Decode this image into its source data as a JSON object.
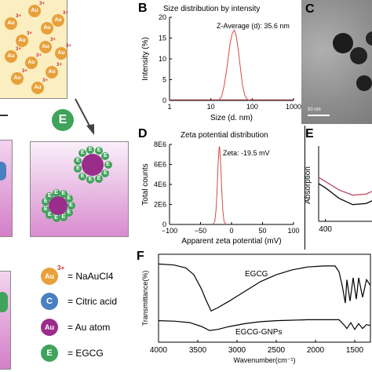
{
  "panels": {
    "B": {
      "letter": "B",
      "title": "Size distribution by intensity"
    },
    "C": {
      "letter": "C"
    },
    "D": {
      "letter": "D",
      "title": "Zeta potential distribution"
    },
    "E": {
      "letter": "E"
    },
    "F": {
      "letter": "F"
    }
  },
  "schematic": {
    "step_badge": "E",
    "ion_label": "Au",
    "ion_charge": "3+",
    "legend": [
      {
        "symbol": "Au",
        "sup": "3+",
        "label": "= NaAuCl4",
        "color": "#e8a03a"
      },
      {
        "symbol": "C",
        "sup": "",
        "label": "= Citric acid",
        "color": "#4a7fc1"
      },
      {
        "symbol": "Au",
        "sup": "",
        "label": "= Au atom",
        "color": "#9b2d8a"
      },
      {
        "symbol": "E",
        "sup": "",
        "label": "= EGCG",
        "color": "#3fa35b"
      }
    ]
  },
  "tem": {
    "scale_bar_text": "50 nm"
  },
  "chart_data": [
    {
      "panel": "B",
      "type": "line",
      "title": "Size distribution by intensity",
      "annotation": "Z-Average (d): 35.6 nm",
      "xlabel": "Size (d. nm)",
      "ylabel": "Intensity (%)",
      "xscale": "log",
      "xlim": [
        1,
        1000
      ],
      "ylim": [
        0,
        20
      ],
      "xticks": [
        "1",
        "10",
        "100",
        "1000"
      ],
      "yticks": [
        "0",
        "5",
        "10",
        "15",
        "20"
      ],
      "series": [
        {
          "color": "#d94b4b",
          "x": [
            15,
            18,
            21,
            25,
            29,
            33,
            37,
            41,
            46,
            52,
            58,
            66,
            75,
            85
          ],
          "y": [
            0,
            0.8,
            3.5,
            8.5,
            13.5,
            16.2,
            16.9,
            15.6,
            12.2,
            7.6,
            3.8,
            1.3,
            0.3,
            0
          ]
        }
      ]
    },
    {
      "panel": "D",
      "type": "line",
      "title": "Zeta potential distribution",
      "annotation": "Zeta: -19.5 mV",
      "xlabel": "Apparent zeta potential (mV)",
      "ylabel": "Total counts",
      "xlim": [
        -100,
        100
      ],
      "ylim": [
        0,
        8000000
      ],
      "xticks": [
        "−100",
        "−50",
        "0",
        "50",
        "100"
      ],
      "yticks": [
        "0",
        "2E6",
        "4E6",
        "6E6",
        "8E6"
      ],
      "series": [
        {
          "color": "#d94b4b",
          "x": [
            -30,
            -27,
            -25,
            -23,
            -21.5,
            -20,
            -19.5,
            -19,
            -17.5,
            -16,
            -14,
            -12,
            -9
          ],
          "y": [
            0,
            300000,
            1500000,
            3800000,
            6200000,
            7600000,
            7800000,
            7600000,
            6000000,
            3700000,
            1400000,
            300000,
            0
          ]
        }
      ]
    },
    {
      "panel": "E",
      "type": "line",
      "ylabel": "Absorption",
      "xticks": [
        "400"
      ],
      "series": [
        {
          "color": "#c0506a",
          "x": [
            390,
            400,
            420,
            440,
            460,
            480,
            500
          ],
          "y": [
            0.72,
            0.68,
            0.6,
            0.55,
            0.56,
            0.62,
            0.7
          ]
        },
        {
          "color": "#111111",
          "x": [
            390,
            400,
            420,
            440,
            460,
            480,
            500
          ],
          "y": [
            0.66,
            0.62,
            0.52,
            0.46,
            0.47,
            0.53,
            0.6
          ]
        }
      ]
    },
    {
      "panel": "F",
      "type": "line",
      "xlabel": "Wavenumber(cm⁻¹)",
      "ylabel": "Transmittance(%)",
      "xlim": [
        4000,
        1300
      ],
      "xticks": [
        "4000",
        "3500",
        "3000",
        "2500",
        "2000",
        "1500"
      ],
      "series": [
        {
          "name": "EGCG",
          "color": "#000000",
          "x": [
            4000,
            3800,
            3650,
            3550,
            3450,
            3400,
            3330,
            3250,
            3100,
            2900,
            2700,
            2500,
            2300,
            2100,
            1900,
            1750,
            1700,
            1660,
            1620,
            1600,
            1560,
            1520,
            1480,
            1450,
            1400,
            1350,
            1300
          ],
          "y": [
            80,
            79,
            76,
            69,
            54,
            44,
            32,
            35,
            42,
            52,
            62,
            69,
            74,
            77,
            78,
            78,
            72,
            58,
            40,
            64,
            42,
            66,
            44,
            66,
            46,
            64,
            58
          ]
        },
        {
          "name": "EGCG-GNPs",
          "color": "#000000",
          "x": [
            4000,
            3800,
            3600,
            3450,
            3350,
            3250,
            3100,
            2900,
            2700,
            2500,
            2300,
            2100,
            1900,
            1700,
            1640,
            1600,
            1550,
            1500,
            1450,
            1400,
            1350,
            1300
          ],
          "y": [
            22,
            21.5,
            20,
            16,
            12,
            13,
            16,
            19,
            21,
            22,
            22.5,
            23,
            23,
            23,
            18,
            14,
            20,
            13,
            19,
            14,
            18,
            17
          ]
        }
      ]
    }
  ]
}
